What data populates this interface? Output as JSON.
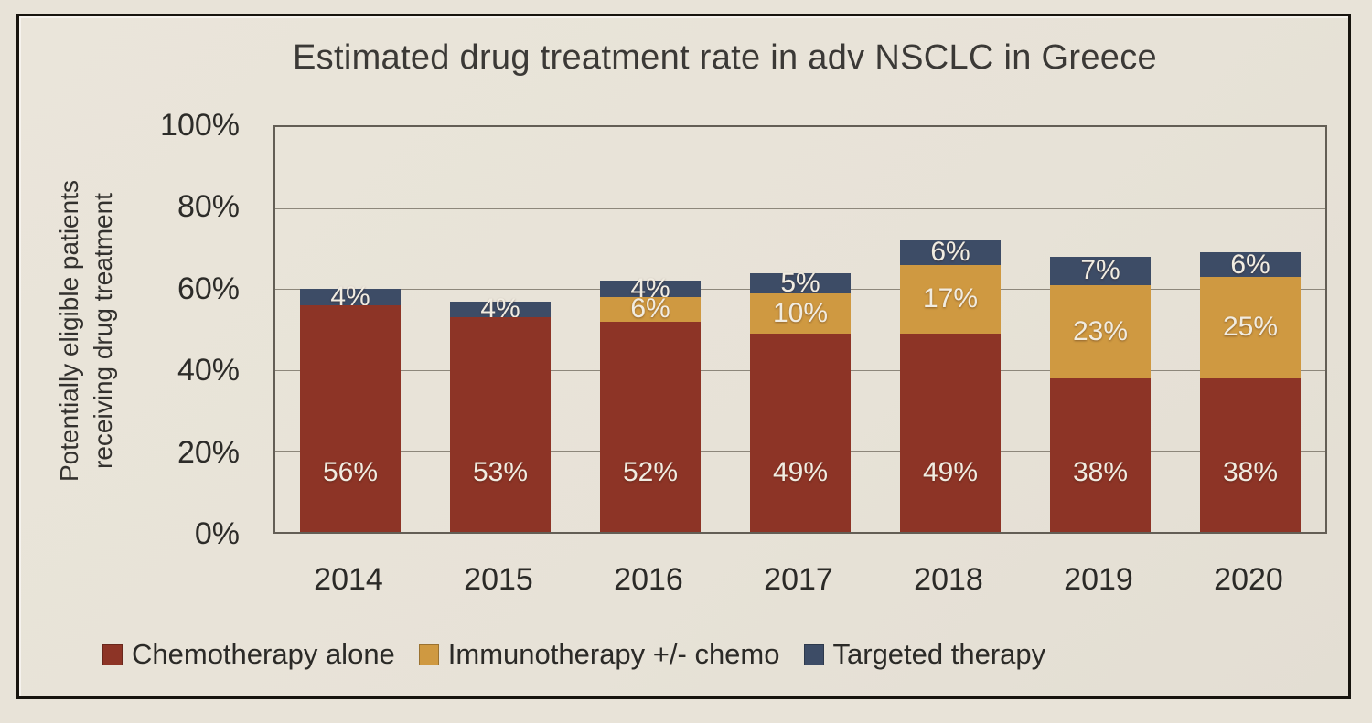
{
  "title": "Estimated drug treatment rate in adv NSCLC in Greece",
  "chart_data": {
    "type": "bar",
    "stacked": true,
    "title": "Estimated drug treatment rate in adv NSCLC in Greece",
    "categories": [
      "2014",
      "2015",
      "2016",
      "2017",
      "2018",
      "2019",
      "2020"
    ],
    "series": [
      {
        "name": "Chemotherapy alone",
        "color": "#8D3426",
        "values": [
          56,
          53,
          52,
          49,
          49,
          38,
          38
        ]
      },
      {
        "name": "Immunotherapy +/- chemo",
        "color": "#CF9941",
        "values": [
          0,
          0,
          6,
          10,
          17,
          23,
          25
        ]
      },
      {
        "name": "Targeted therapy",
        "color": "#3D4C66",
        "values": [
          4,
          4,
          4,
          5,
          6,
          7,
          6
        ]
      }
    ],
    "bar_labels": [
      [
        "56%",
        "53%",
        "52%",
        "49%",
        "49%",
        "38%",
        "38%"
      ],
      [
        "",
        "",
        "6%",
        "10%",
        "17%",
        "23%",
        "25%"
      ],
      [
        "4%",
        "4%",
        "4%",
        "5%",
        "6%",
        "7%",
        "6%"
      ]
    ],
    "xlabel": "",
    "ylabel": "Potentially eligible patients receiving drug treatment",
    "ylabel_lines": [
      "Potentially eligible patients",
      "receiving drug treatment"
    ],
    "yticks": [
      "100%",
      "80%",
      "60%",
      "40%",
      "20%",
      "0%"
    ],
    "ytick_values": [
      100,
      80,
      60,
      40,
      20,
      0
    ],
    "ylim": [
      0,
      100
    ],
    "grid": "horizontal",
    "legend_position": "bottom"
  },
  "colors": {
    "background": "#E8E3D8",
    "frame_border": "#17140e",
    "plot_border": "#635e55",
    "gridline": "#8d877b",
    "bar_label_text": "#F1ECE1",
    "axis_text": "#2d2c29",
    "title_text": "#3b3936"
  }
}
